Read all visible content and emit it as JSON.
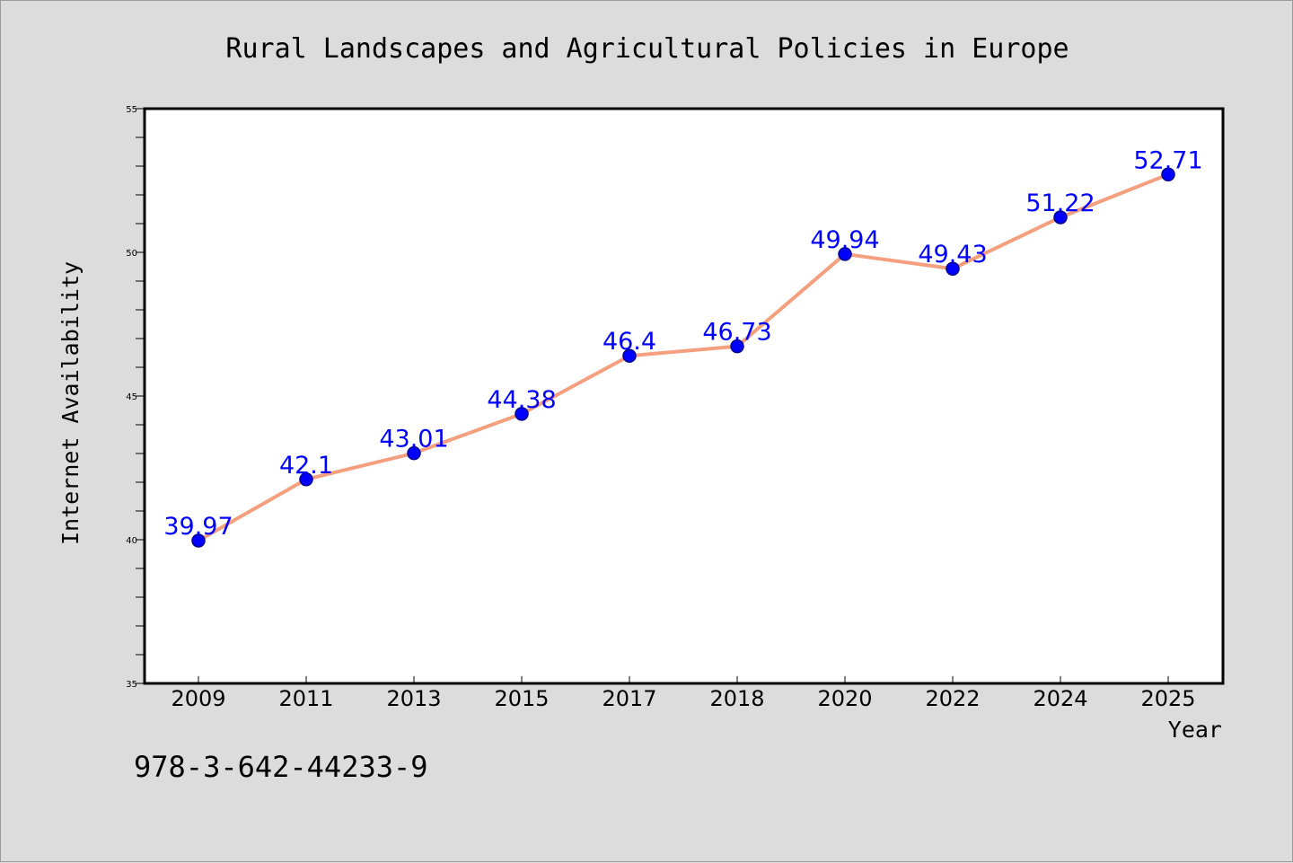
{
  "chart_data": {
    "type": "line",
    "title": "Rural Landscapes and Agricultural Policies in Europe",
    "xlabel": "Year",
    "ylabel": "Internet Availability",
    "categories": [
      "2009",
      "2011",
      "2013",
      "2015",
      "2017",
      "2018",
      "2020",
      "2022",
      "2024",
      "2025"
    ],
    "values": [
      39.97,
      42.1,
      43.01,
      44.38,
      46.4,
      46.73,
      49.94,
      49.43,
      51.22,
      52.71
    ],
    "data_labels": [
      "39.97",
      "42.1",
      "43.01",
      "44.38",
      "46.4",
      "46.73",
      "49.94",
      "49.43",
      "51.22",
      "52.71"
    ],
    "ylim": [
      35,
      55
    ],
    "yticks": [
      35,
      40,
      45,
      50,
      55
    ],
    "grid": false,
    "legend": "none",
    "colors": {
      "line": "#f4a07f",
      "marker": "#0000ff",
      "marker_edge": "#00008b",
      "data_label": "#0000ff",
      "background": "#dcdcdc",
      "plot_area": "#ffffff"
    }
  },
  "footer": {
    "isbn": "978-3-642-44233-9"
  }
}
